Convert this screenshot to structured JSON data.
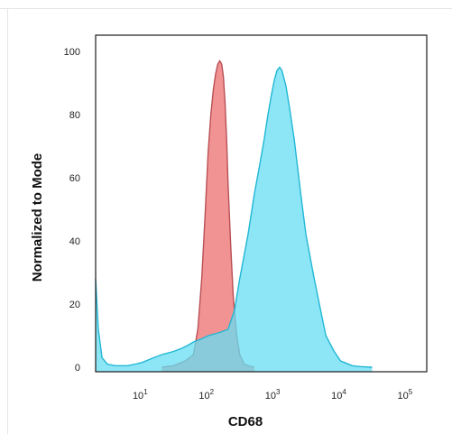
{
  "chart_data": {
    "type": "area",
    "title": "",
    "xlabel": "CD68",
    "ylabel": "Normalized to Mode",
    "x_scale": "log",
    "xlim": [
      2,
      200000
    ],
    "ylim": [
      0,
      100
    ],
    "x_ticks": [
      {
        "value": 10,
        "base": "10",
        "exp": "1"
      },
      {
        "value": 100,
        "base": "10",
        "exp": "2"
      },
      {
        "value": 1000,
        "base": "10",
        "exp": "3"
      },
      {
        "value": 10000,
        "base": "10",
        "exp": "4"
      },
      {
        "value": 100000,
        "base": "10",
        "exp": "5"
      }
    ],
    "y_ticks": [
      "0",
      "20",
      "40",
      "60",
      "80",
      "100"
    ],
    "grid": false,
    "legend": "none",
    "series": [
      {
        "color": "#f08080",
        "stroke": "#b84f55",
        "x": [
          20,
          30,
          45,
          60,
          70,
          80,
          90,
          100,
          110,
          120,
          130,
          140,
          150,
          160,
          170,
          180,
          190,
          200,
          220,
          240,
          270,
          300,
          350,
          400,
          500
        ],
        "y": [
          0,
          0.5,
          2,
          4,
          12,
          28,
          48,
          68,
          80,
          88,
          93,
          96,
          97,
          96,
          92,
          84,
          72,
          58,
          38,
          22,
          10,
          4,
          1,
          0.5,
          0
        ]
      },
      {
        "color": "#66def3",
        "stroke": "#22b7d4",
        "x": [
          2,
          2.2,
          2.5,
          3,
          4,
          6,
          8,
          10,
          15,
          20,
          30,
          40,
          50,
          60,
          80,
          100,
          150,
          200,
          250,
          300,
          400,
          500,
          600,
          700,
          800,
          900,
          1000,
          1100,
          1200,
          1300,
          1500,
          1700,
          2000,
          2500,
          3000,
          4000,
          5000,
          6000,
          8000,
          10000,
          15000,
          20000,
          30000
        ],
        "y": [
          28,
          12,
          3,
          1,
          0.5,
          0.5,
          1,
          1.5,
          3,
          4,
          5,
          6,
          7,
          8,
          9,
          10,
          11,
          12,
          18,
          28,
          42,
          55,
          64,
          72,
          80,
          86,
          91,
          94,
          95,
          94,
          89,
          82,
          72,
          55,
          42,
          28,
          18,
          10,
          5,
          2,
          0.5,
          0.2,
          0
        ]
      }
    ]
  }
}
